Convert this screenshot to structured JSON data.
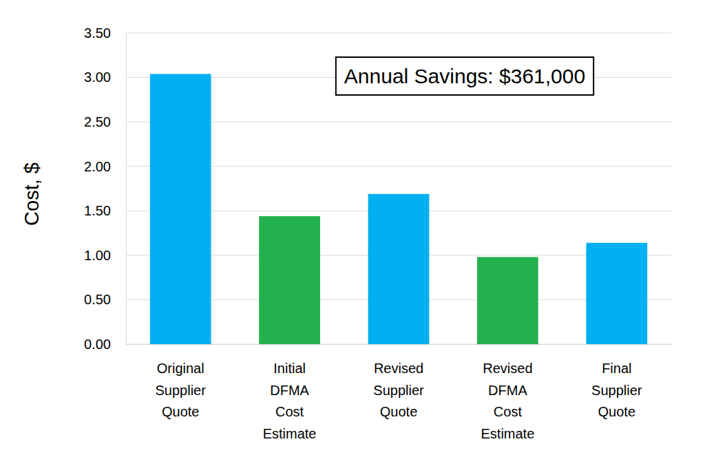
{
  "chart_data": {
    "type": "bar",
    "categories": [
      "Original Supplier Quote",
      "Initial DFMA Cost Estimate",
      "Revised Supplier Quote",
      "Revised DFMA Cost Estimate",
      "Final Supplier Quote"
    ],
    "values": [
      3.04,
      1.44,
      1.69,
      0.98,
      1.14
    ],
    "colors": [
      "#00b0f0",
      "#23b14d",
      "#00b0f0",
      "#23b14d",
      "#00b0f0"
    ],
    "y_label": "Cost, $",
    "annotation": "Annual Savings: $361,000",
    "ylim": [
      0,
      3.5
    ],
    "yticks": [
      {
        "value": 0,
        "label": "0.00"
      },
      {
        "value": 0.5,
        "label": "0.50"
      },
      {
        "value": 1,
        "label": "1.00"
      },
      {
        "value": 1.5,
        "label": "1.50"
      },
      {
        "value": 2,
        "label": "2.00"
      },
      {
        "value": 2.5,
        "label": "2.50"
      },
      {
        "value": 3,
        "label": "3.00"
      },
      {
        "value": 3.5,
        "label": "3.50"
      }
    ],
    "grid": true
  }
}
